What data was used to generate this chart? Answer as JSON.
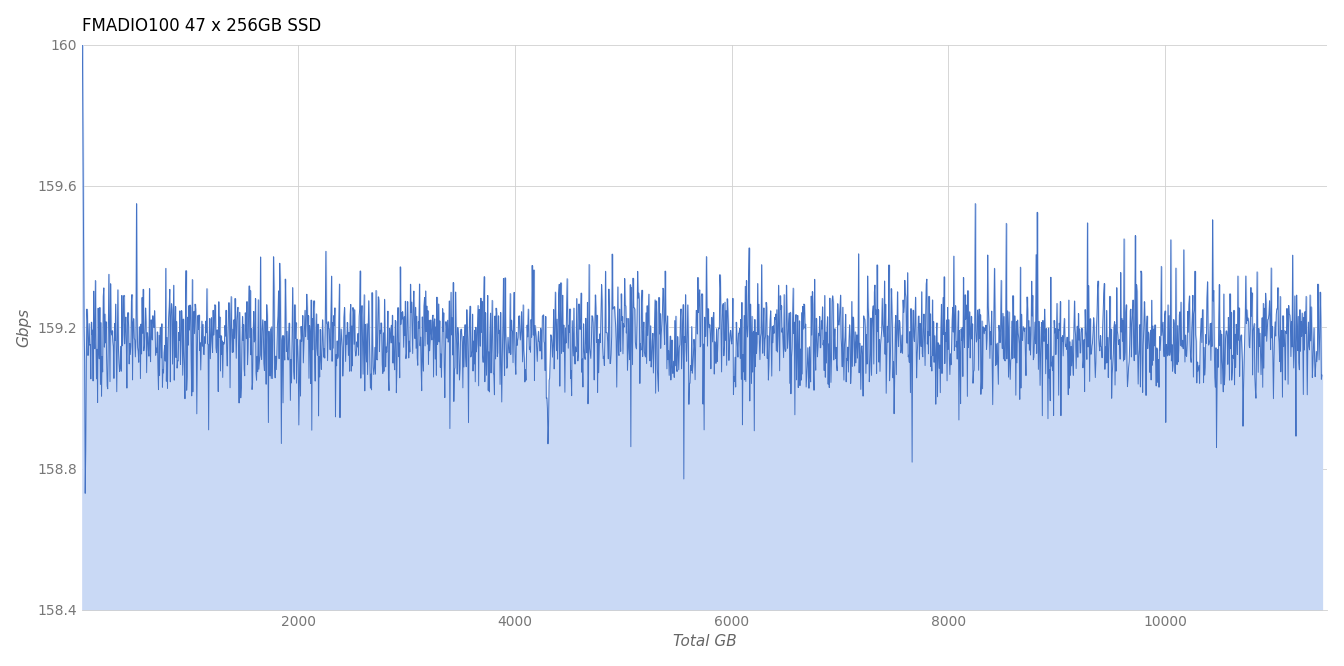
{
  "title": "FMADIO100 47 x 256GB SSD",
  "xlabel": "Total GB",
  "ylabel": "Gbps",
  "xlim": [
    0,
    11500
  ],
  "ylim": [
    158.4,
    160.0
  ],
  "yticks": [
    158.4,
    158.8,
    159.2,
    159.6,
    160.0
  ],
  "ytick_labels": [
    "158.4",
    "158.8",
    "159.2",
    "159.6",
    "160"
  ],
  "xticks": [
    2000,
    4000,
    6000,
    8000,
    10000
  ],
  "line_color": "#4472c4",
  "fill_color": "#c9d9f5",
  "background_color": "#ffffff",
  "grid_color": "#d0d0d0",
  "mean_value": 159.17,
  "noise_std": 0.08,
  "n_points": 2200,
  "x_start": 5,
  "x_end": 11450
}
